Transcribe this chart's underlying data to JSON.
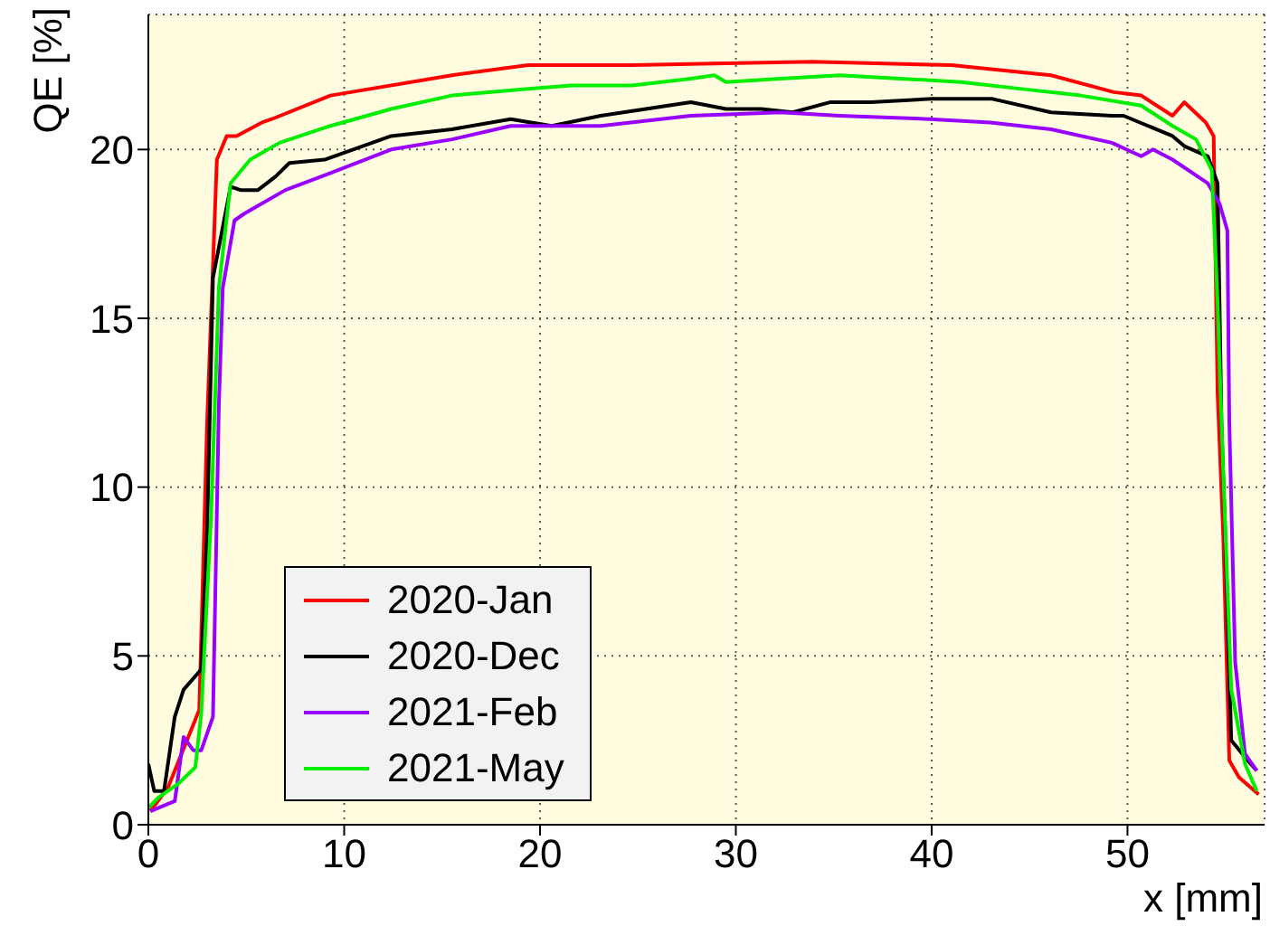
{
  "chart_data": {
    "type": "line",
    "xlabel": "x [mm]",
    "ylabel": "QE [%]",
    "xlim": [
      0,
      57
    ],
    "xticks": [
      0,
      10,
      20,
      30,
      40,
      50
    ],
    "ylim": [
      0,
      24
    ],
    "yticks": [
      0,
      5,
      10,
      15,
      20
    ],
    "grid": true,
    "legend": "bottom left",
    "marker": "none",
    "line_style": "solid",
    "series": [
      {
        "name": "2020-Jan",
        "color": "#ff0000",
        "x": [
          0.1,
          1.0,
          2.6,
          3.0,
          3.5,
          4.0,
          4.5,
          5.8,
          6.3,
          9.3,
          15.5,
          19.4,
          24.7,
          33.9,
          41.0,
          46.1,
          49.3,
          50.7,
          52.3,
          52.9,
          54.0,
          54.4,
          54.6,
          54.9,
          55.2,
          55.7,
          56.7
        ],
        "values": [
          0.4,
          1.1,
          3.4,
          11.9,
          19.7,
          20.4,
          20.4,
          20.8,
          20.9,
          21.6,
          22.2,
          22.5,
          22.5,
          22.6,
          22.5,
          22.2,
          21.7,
          21.6,
          21.0,
          21.4,
          20.8,
          20.4,
          12.8,
          8.4,
          1.9,
          1.4,
          0.9
        ]
      },
      {
        "name": "2020-Dec",
        "color": "#000000",
        "x": [
          0,
          0.3,
          0.8,
          1.35,
          1.8,
          2.7,
          3.0,
          3.3,
          3.8,
          4.2,
          4.7,
          5.6,
          6.5,
          7.2,
          9.0,
          12.4,
          15.5,
          18.5,
          20.6,
          23.1,
          27.7,
          29.5,
          31.3,
          32.9,
          34.8,
          36.9,
          40.0,
          43.1,
          46.1,
          49.2,
          49.8,
          52.3,
          52.9,
          54.1,
          54.6,
          54.8,
          55.0,
          55.3,
          56.0,
          56.6
        ],
        "values": [
          1.8,
          1.0,
          1.0,
          3.2,
          4.0,
          4.6,
          8.7,
          16.2,
          17.7,
          18.9,
          18.8,
          18.8,
          19.2,
          19.6,
          19.7,
          20.4,
          20.6,
          20.9,
          20.7,
          21.0,
          21.4,
          21.2,
          21.2,
          21.1,
          21.4,
          21.4,
          21.5,
          21.5,
          21.1,
          21.0,
          21.0,
          20.4,
          20.1,
          19.8,
          19.0,
          11.9,
          8.4,
          2.5,
          2.0,
          1.6
        ]
      },
      {
        "name": "2021-Feb",
        "color": "#9900ff",
        "x": [
          0.1,
          1.35,
          1.8,
          2.3,
          2.7,
          3.3,
          3.6,
          3.8,
          4.4,
          4.9,
          5.5,
          7.0,
          9.3,
          12.4,
          15.5,
          18.5,
          23.1,
          27.7,
          32.3,
          35.3,
          39.9,
          43.0,
          46.1,
          49.2,
          50.7,
          51.3,
          52.3,
          54.1,
          54.7,
          55.1,
          55.2,
          55.5,
          56.0,
          56.6
        ],
        "values": [
          0.4,
          0.7,
          2.6,
          2.2,
          2.2,
          3.2,
          12.4,
          15.9,
          17.9,
          18.1,
          18.3,
          18.8,
          19.3,
          20.0,
          20.3,
          20.7,
          20.7,
          21.0,
          21.1,
          21.0,
          20.9,
          20.8,
          20.6,
          20.2,
          19.8,
          20.0,
          19.7,
          19.0,
          18.4,
          17.6,
          11.9,
          4.8,
          2.1,
          1.6
        ]
      },
      {
        "name": "2021-May",
        "color": "#00ee00",
        "x": [
          0,
          0.5,
          1.5,
          2.4,
          2.7,
          3.2,
          3.6,
          4.2,
          5.2,
          6.7,
          9.3,
          12.4,
          15.5,
          19.4,
          21.6,
          24.7,
          27.7,
          28.9,
          29.5,
          32.3,
          35.3,
          38.4,
          41.5,
          44.5,
          47.6,
          50.7,
          52.3,
          53.5,
          54.3,
          54.6,
          54.9,
          55.3,
          56.0,
          56.6
        ],
        "values": [
          0.5,
          0.8,
          1.2,
          1.7,
          3.3,
          9.1,
          15.9,
          19.0,
          19.7,
          20.2,
          20.7,
          21.2,
          21.6,
          21.8,
          21.9,
          21.9,
          22.1,
          22.2,
          22.0,
          22.1,
          22.2,
          22.1,
          22.0,
          21.8,
          21.6,
          21.3,
          20.7,
          20.3,
          19.4,
          15.5,
          10.2,
          4.0,
          1.8,
          1.0
        ]
      }
    ]
  }
}
